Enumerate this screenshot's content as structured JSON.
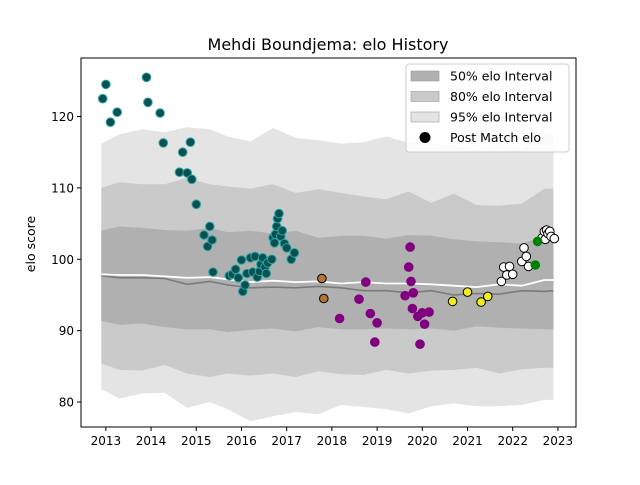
{
  "chart_data": {
    "type": "scatter",
    "title": "Mehdi Boundjema: elo History",
    "xlabel": "",
    "ylabel": "elo score",
    "xlim": [
      2012.45,
      2023.4
    ],
    "ylim": [
      76.5,
      128.2
    ],
    "x_ticks": [
      2013,
      2014,
      2015,
      2016,
      2017,
      2018,
      2019,
      2020,
      2021,
      2022,
      2023
    ],
    "x_tick_labels": [
      "2013",
      "2014",
      "2015",
      "2016",
      "2017",
      "2018",
      "2019",
      "2020",
      "2021",
      "2022",
      "2023"
    ],
    "y_ticks": [
      80,
      90,
      100,
      110,
      120
    ],
    "y_tick_labels": [
      "80",
      "90",
      "100",
      "110",
      "120"
    ],
    "grid": false,
    "legend_position": "top-right",
    "legend": [
      {
        "label": "50% elo Interval",
        "kind": "band",
        "color": "#b0b0b0"
      },
      {
        "label": "80% elo Interval",
        "kind": "band",
        "color": "#cacaca"
      },
      {
        "label": "95% elo Interval",
        "kind": "band",
        "color": "#e4e4e4"
      },
      {
        "label": "Post Match elo",
        "kind": "marker",
        "color": "#000000"
      }
    ],
    "colors": {
      "band95": "#e4e4e4",
      "band80": "#cacaca",
      "band50": "#b0b0b0",
      "median_line": "#7a7a7a",
      "mean_line": "#ffffff",
      "teal": "#0a5050",
      "teal_edge": "#2aa5a5",
      "brown": "#b87333",
      "purple": "#800080",
      "yellow": "#f0ec20",
      "white": "#ffffff",
      "green": "#008000",
      "marker_edge": "#000000"
    },
    "interval_x": [
      2012.9,
      2013.3,
      2013.8,
      2014.3,
      2014.8,
      2015.3,
      2015.7,
      2016.2,
      2016.7,
      2017.2,
      2017.7,
      2018.2,
      2018.7,
      2019.2,
      2019.7,
      2020.2,
      2020.7,
      2021.2,
      2021.7,
      2022.2,
      2022.7,
      2022.9
    ],
    "band95_upper": [
      116.2,
      117.5,
      118.2,
      117.8,
      118.5,
      118.2,
      117.2,
      116.5,
      118.4,
      117.0,
      116.7,
      116.2,
      116.4,
      117.2,
      116.3,
      116.2,
      116.0,
      115.2,
      116.2,
      115.4,
      117.6,
      117.4
    ],
    "band95_lower": [
      81.8,
      80.5,
      81.2,
      81.3,
      79.2,
      80.0,
      79.0,
      77.3,
      78.0,
      78.6,
      78.3,
      79.6,
      79.3,
      79.0,
      78.4,
      79.4,
      79.8,
      79.4,
      79.4,
      79.6,
      80.3,
      80.3
    ],
    "band80_upper": [
      110.0,
      110.8,
      110.5,
      110.5,
      111.4,
      110.5,
      110.2,
      109.9,
      110.5,
      109.3,
      109.8,
      109.3,
      108.8,
      108.4,
      109.5,
      107.9,
      109.2,
      107.6,
      107.5,
      107.8,
      109.9,
      109.9
    ],
    "band80_lower": [
      85.4,
      84.5,
      84.4,
      85.2,
      84.0,
      83.5,
      84.0,
      83.7,
      84.0,
      83.5,
      84.3,
      83.9,
      83.8,
      84.5,
      84.0,
      84.4,
      84.5,
      84.8,
      84.0,
      84.6,
      84.8,
      84.8
    ],
    "band50_upper": [
      104.0,
      104.6,
      104.4,
      104.1,
      104.0,
      104.4,
      103.8,
      104.0,
      103.6,
      104.0,
      103.0,
      103.3,
      103.3,
      102.9,
      103.4,
      103.3,
      102.8,
      102.5,
      102.4,
      102.2,
      103.2,
      103.2
    ],
    "band50_lower": [
      91.4,
      90.8,
      91.0,
      90.5,
      90.2,
      90.2,
      89.8,
      90.1,
      90.3,
      89.9,
      90.5,
      90.2,
      90.2,
      90.3,
      90.2,
      90.3,
      90.0,
      90.6,
      90.4,
      90.3,
      90.2,
      90.2
    ],
    "median_line": [
      97.7,
      97.4,
      97.4,
      97.3,
      96.5,
      96.9,
      96.4,
      96.0,
      96.1,
      96.0,
      96.2,
      96.0,
      95.6,
      95.6,
      95.3,
      95.6,
      95.0,
      95.2,
      95.1,
      95.6,
      95.5,
      95.6
    ],
    "mean_line": [
      97.9,
      97.8,
      97.8,
      97.6,
      97.4,
      97.5,
      97.2,
      96.8,
      97.0,
      96.8,
      96.9,
      96.6,
      96.8,
      96.6,
      96.6,
      96.5,
      96.3,
      96.1,
      96.5,
      96.3,
      97.1,
      97.1
    ],
    "series": [
      {
        "color_key": "teal",
        "points": [
          [
            2012.93,
            122.5
          ],
          [
            2013.0,
            124.5
          ],
          [
            2013.1,
            119.2
          ],
          [
            2013.25,
            120.6
          ],
          [
            2013.9,
            125.5
          ],
          [
            2013.93,
            122.0
          ],
          [
            2014.2,
            120.5
          ],
          [
            2014.27,
            116.3
          ],
          [
            2014.63,
            112.2
          ],
          [
            2014.7,
            115.0
          ],
          [
            2014.8,
            112.1
          ],
          [
            2014.87,
            116.4
          ],
          [
            2014.9,
            111.2
          ],
          [
            2015.0,
            107.7
          ],
          [
            2015.17,
            103.4
          ],
          [
            2015.25,
            101.8
          ],
          [
            2015.3,
            104.6
          ],
          [
            2015.35,
            102.7
          ],
          [
            2015.37,
            98.2
          ],
          [
            2015.73,
            97.7
          ],
          [
            2015.8,
            97.9
          ],
          [
            2015.87,
            98.6
          ],
          [
            2015.93,
            97.4
          ],
          [
            2016.0,
            99.9
          ],
          [
            2016.03,
            95.5
          ],
          [
            2016.08,
            96.4
          ],
          [
            2016.12,
            98.0
          ],
          [
            2016.2,
            100.2
          ],
          [
            2016.25,
            98.2
          ],
          [
            2016.3,
            100.4
          ],
          [
            2016.35,
            97.5
          ],
          [
            2016.4,
            98.3
          ],
          [
            2016.43,
            99.3
          ],
          [
            2016.47,
            100.2
          ],
          [
            2016.52,
            98.9
          ],
          [
            2016.55,
            98.0
          ],
          [
            2016.58,
            99.5
          ],
          [
            2016.67,
            100.0
          ],
          [
            2016.7,
            103.0
          ],
          [
            2016.73,
            102.3
          ],
          [
            2016.75,
            103.5
          ],
          [
            2016.78,
            104.6
          ],
          [
            2016.8,
            105.7
          ],
          [
            2016.83,
            106.4
          ],
          [
            2016.87,
            103.2
          ],
          [
            2016.9,
            104.0
          ],
          [
            2016.95,
            102.2
          ],
          [
            2017.0,
            101.6
          ],
          [
            2017.1,
            100.0
          ],
          [
            2017.17,
            100.9
          ]
        ]
      },
      {
        "color_key": "brown",
        "points": [
          [
            2017.78,
            97.3
          ],
          [
            2017.82,
            94.5
          ]
        ]
      },
      {
        "color_key": "purple",
        "points": [
          [
            2018.17,
            91.7
          ],
          [
            2018.6,
            94.4
          ],
          [
            2018.75,
            96.8
          ],
          [
            2018.85,
            92.4
          ],
          [
            2018.95,
            88.4
          ],
          [
            2019.0,
            91.1
          ],
          [
            2019.62,
            94.9
          ],
          [
            2019.7,
            98.9
          ],
          [
            2019.73,
            101.7
          ],
          [
            2019.75,
            96.9
          ],
          [
            2019.78,
            93.1
          ],
          [
            2019.8,
            95.3
          ],
          [
            2019.9,
            92.0
          ],
          [
            2019.95,
            88.1
          ],
          [
            2020.0,
            92.5
          ],
          [
            2020.05,
            90.9
          ],
          [
            2020.15,
            92.6
          ]
        ]
      },
      {
        "color_key": "yellow",
        "points": [
          [
            2020.67,
            94.1
          ],
          [
            2021.0,
            95.4
          ],
          [
            2021.3,
            94.0
          ],
          [
            2021.45,
            94.8
          ]
        ]
      },
      {
        "color_key": "white",
        "points": [
          [
            2021.75,
            96.9
          ],
          [
            2021.8,
            98.9
          ],
          [
            2021.87,
            97.8
          ],
          [
            2021.93,
            99.0
          ],
          [
            2022.0,
            97.9
          ],
          [
            2022.2,
            99.7
          ],
          [
            2022.25,
            101.6
          ],
          [
            2022.3,
            100.4
          ],
          [
            2022.35,
            99.0
          ],
          [
            2022.65,
            103.0
          ],
          [
            2022.7,
            103.9
          ],
          [
            2022.72,
            102.8
          ],
          [
            2022.75,
            104.1
          ],
          [
            2022.78,
            103.6
          ],
          [
            2022.82,
            103.9
          ],
          [
            2022.85,
            103.2
          ],
          [
            2022.92,
            102.9
          ]
        ]
      },
      {
        "color_key": "green",
        "points": [
          [
            2022.5,
            99.2
          ],
          [
            2022.55,
            102.5
          ]
        ]
      }
    ]
  }
}
